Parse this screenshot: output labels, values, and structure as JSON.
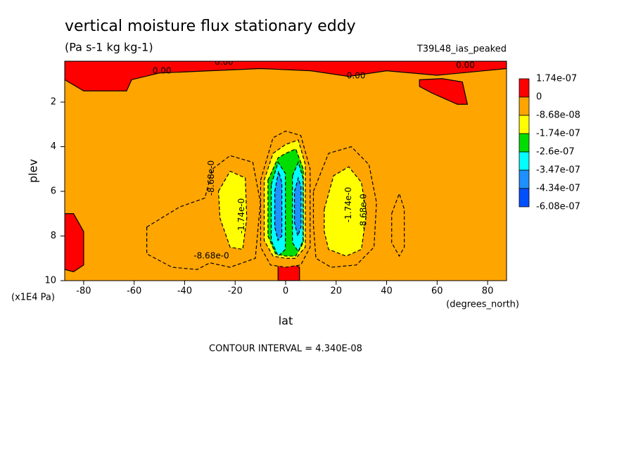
{
  "chart_data": {
    "type": "contour",
    "title": "vertical moisture flux stationary eddy",
    "subtitle": "(Pa s-1 kg kg-1)",
    "dataset": "T39L48_ias_peaked",
    "x_label": "lat",
    "x_units": "(degrees_north)",
    "y_label": "plev",
    "y_units": "(x1E4 Pa)",
    "footer": "CONTOUR INTERVAL = 4.340E-08",
    "xlim": [
      -87.5,
      87.5
    ],
    "xticks": [
      -80,
      -60,
      -40,
      -20,
      0,
      20,
      40,
      60,
      80
    ],
    "ylim": [
      10,
      0.17
    ],
    "yticks": [
      2,
      4,
      6,
      8,
      10
    ],
    "colorbar_ticks": [
      {
        "value": 1.74e-07,
        "label": "1.74e-07"
      },
      0,
      {
        "value": -8.68e-08,
        "label": "-8.68e-08"
      },
      {
        "value": -1.74e-07,
        "label": "-1.74e-07"
      },
      {
        "value": -2.6e-07,
        "label": "-2.6e-07"
      },
      {
        "value": -3.47e-07,
        "label": "-3.47e-07"
      },
      {
        "value": -4.34e-07,
        "label": "-4.34e-07"
      },
      {
        "value": -6.08e-07,
        "label": "-6.08e-07"
      }
    ],
    "colors": [
      "#ff0000",
      "#ffa500",
      "#ffff00",
      "#00dd00",
      "#00ffff",
      "#1e90ff",
      "#0050ff"
    ],
    "regions": [
      {
        "level": 0,
        "lat": [
          -87.5,
          87.5,
          87.5,
          60,
          40,
          25,
          10,
          -10,
          -30,
          -50,
          -61,
          -63,
          -80,
          -87.5
        ],
        "plev": [
          0.17,
          0.17,
          0.5,
          0.8,
          0.6,
          0.85,
          0.6,
          0.5,
          0.6,
          0.7,
          1.0,
          1.5,
          1.5,
          1.0
        ]
      },
      {
        "level": 0,
        "lat": [
          53,
          62,
          70,
          72,
          68,
          58,
          53
        ],
        "plev": [
          1.0,
          0.95,
          1.1,
          2.1,
          2.1,
          1.6,
          1.3
        ]
      },
      {
        "level": 0,
        "lat": [
          -87.5,
          -84,
          -80,
          -80,
          -84,
          -87.5
        ],
        "plev": [
          7.0,
          7.0,
          7.8,
          9.3,
          9.6,
          9.5
        ]
      },
      {
        "level": 0,
        "lat": [
          -3,
          0,
          5.5,
          5.5,
          -3
        ],
        "plev": [
          9.3,
          9.1,
          9.4,
          10,
          10
        ]
      },
      {
        "level": 1,
        "lat": [
          -55,
          -42,
          -32,
          -29,
          -22,
          -13,
          -10,
          -12,
          -22,
          -30,
          -35,
          -45,
          -55
        ],
        "plev": [
          7.6,
          6.7,
          6.3,
          5.0,
          4.4,
          4.7,
          6.5,
          9.0,
          9.4,
          9.2,
          9.5,
          9.4,
          8.8
        ]
      },
      {
        "level": 1,
        "lat": [
          -9.9,
          -5,
          0,
          6,
          9.7,
          9.7,
          6,
          0,
          -6,
          -9.9
        ],
        "plev": [
          5.5,
          3.6,
          3.3,
          3.5,
          5.0,
          8.5,
          9.3,
          9.4,
          9.3,
          8.5
        ]
      },
      {
        "level": 1,
        "lat": [
          11,
          17,
          26,
          33,
          36,
          35,
          28,
          18,
          12,
          11
        ],
        "plev": [
          6.0,
          4.3,
          4.0,
          4.8,
          6.5,
          8.5,
          9.3,
          9.4,
          9.0,
          7.5
        ]
      },
      {
        "level": 1,
        "lat": [
          42,
          45,
          47,
          47,
          45,
          42
        ],
        "plev": [
          7.0,
          6.1,
          6.8,
          8.5,
          8.9,
          8.3
        ]
      },
      {
        "level": 2,
        "lat": [
          -26.6,
          -22,
          -16,
          -15.4,
          -17,
          -22,
          -26
        ],
        "plev": [
          6.0,
          5.1,
          5.4,
          7.2,
          8.6,
          8.5,
          7.2
        ]
      },
      {
        "level": 2,
        "lat": [
          -8.5,
          -5,
          0,
          5,
          7.8,
          7.8,
          4,
          0,
          -5,
          -8.5
        ],
        "plev": [
          5.5,
          4.3,
          3.9,
          3.7,
          4.8,
          8.5,
          9.0,
          9.0,
          8.9,
          8.2
        ]
      },
      {
        "level": 2,
        "lat": [
          15.3,
          19,
          25,
          30,
          32,
          30,
          24,
          17,
          15.3
        ],
        "plev": [
          6.8,
          5.3,
          4.9,
          5.6,
          7.0,
          8.6,
          8.9,
          8.6,
          7.8
        ]
      },
      {
        "level": 3,
        "lat": [
          -7,
          -3,
          0,
          4,
          7,
          7,
          4,
          0,
          -4,
          -7
        ],
        "plev": [
          5.5,
          4.5,
          4.3,
          4.1,
          5.0,
          8.3,
          8.9,
          8.9,
          8.8,
          8.0
        ]
      },
      {
        "level": 4,
        "lat": [
          -5.7,
          -3,
          -0.1,
          -0.1,
          -3,
          -5.7
        ],
        "plev": [
          5.7,
          4.7,
          5.2,
          8.6,
          8.9,
          8.2
        ]
      },
      {
        "level": 4,
        "lat": [
          2.7,
          5,
          6.9,
          6.9,
          5,
          2.7
        ],
        "plev": [
          5.3,
          4.7,
          5.4,
          8.2,
          8.7,
          8.3
        ]
      },
      {
        "level": 5,
        "lat": [
          -4.3,
          -2.8,
          -1.5,
          -1.5,
          -3,
          -4.3
        ],
        "plev": [
          6.0,
          5.1,
          5.6,
          8.0,
          8.2,
          7.6
        ]
      },
      {
        "level": 5,
        "lat": [
          3.5,
          5,
          6.1,
          6.1,
          4.8,
          3.5
        ],
        "plev": [
          6.0,
          5.4,
          5.8,
          7.6,
          8.0,
          7.4
        ]
      }
    ],
    "contour_labels": [
      {
        "text": "0.00",
        "lat": -49,
        "plev": 0.61,
        "vertical": false
      },
      {
        "text": "0.00",
        "lat": -24.4,
        "plev": 0.22,
        "vertical": false
      },
      {
        "text": "0.00",
        "lat": 27.9,
        "plev": 0.83,
        "vertical": false
      },
      {
        "text": "0.00",
        "lat": 71.2,
        "plev": 0.36,
        "vertical": false
      },
      {
        "text": "-8.68e-0",
        "lat": -29.4,
        "plev": 5.4,
        "vertical": true
      },
      {
        "text": "-1.74e-0",
        "lat": -17.4,
        "plev": 7.1,
        "vertical": true
      },
      {
        "text": "-8.68e-0",
        "lat": -29.4,
        "plev": 8.9,
        "vertical": false
      },
      {
        "text": "-1.74e-0",
        "lat": 25,
        "plev": 6.6,
        "vertical": true
      },
      {
        "text": "-8.68e-0",
        "lat": 31,
        "plev": 6.9,
        "vertical": true
      }
    ]
  }
}
